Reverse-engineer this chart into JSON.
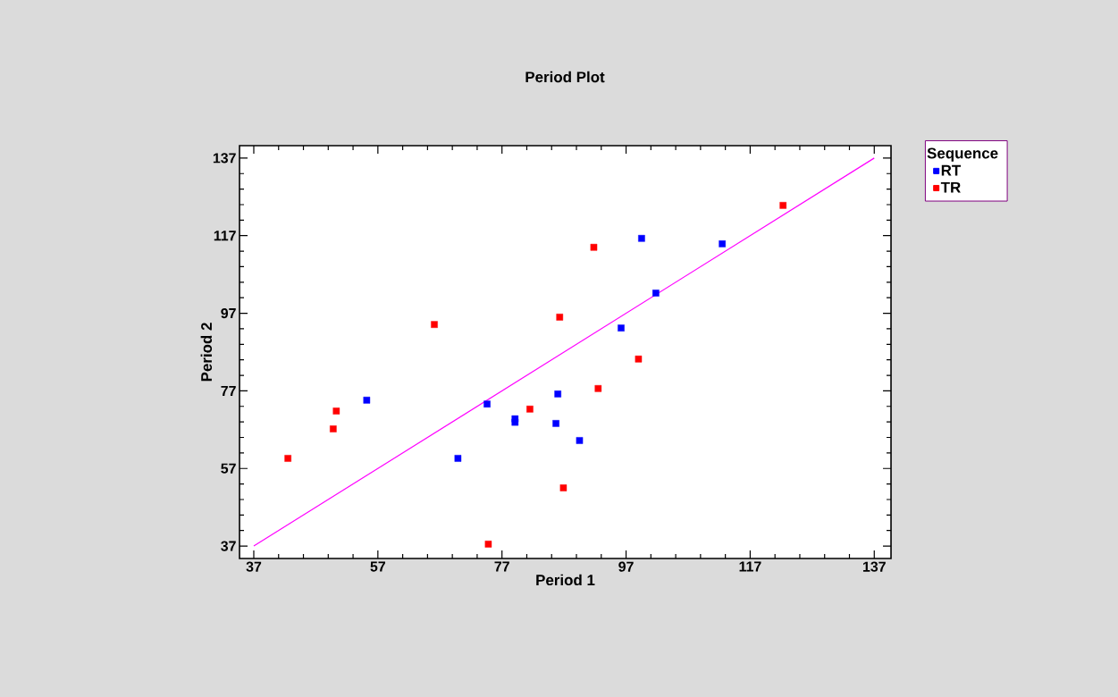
{
  "chart_data": {
    "type": "scatter",
    "title": "Period Plot",
    "xlabel": "Period 1",
    "ylabel": "Period 2",
    "legend_title": "Sequence",
    "legend": "top right",
    "grid": false,
    "xlim": [
      34.7,
      139.7
    ],
    "ylim": [
      33.8,
      140.2
    ],
    "xticks": [
      37,
      57,
      77,
      97,
      117,
      137
    ],
    "yticks": [
      37,
      57,
      77,
      97,
      117,
      137
    ],
    "series": [
      {
        "name": "RT",
        "color": "#0000ff",
        "marker": "square",
        "x": [
          55.2,
          74.6,
          79.1,
          79.1,
          69.9,
          86.0,
          85.7,
          89.5,
          96.2,
          99.5,
          101.8,
          112.5
        ],
        "values": [
          74.6,
          73.6,
          69.8,
          68.9,
          59.6,
          76.2,
          68.6,
          64.2,
          93.2,
          116.3,
          102.2,
          114.9
        ]
      },
      {
        "name": "TR",
        "color": "#ff0000",
        "marker": "square",
        "x": [
          42.5,
          49.8,
          50.3,
          66.1,
          74.8,
          81.5,
          86.3,
          86.9,
          91.8,
          92.5,
          99.0,
          122.3
        ],
        "values": [
          59.6,
          67.2,
          71.8,
          94.1,
          37.5,
          72.3,
          96.0,
          52.0,
          114.0,
          77.6,
          85.2,
          124.8
        ]
      },
      {
        "type": "line",
        "color": "#ff00ff",
        "x": [
          37,
          137
        ],
        "values": [
          37,
          137
        ]
      }
    ]
  }
}
